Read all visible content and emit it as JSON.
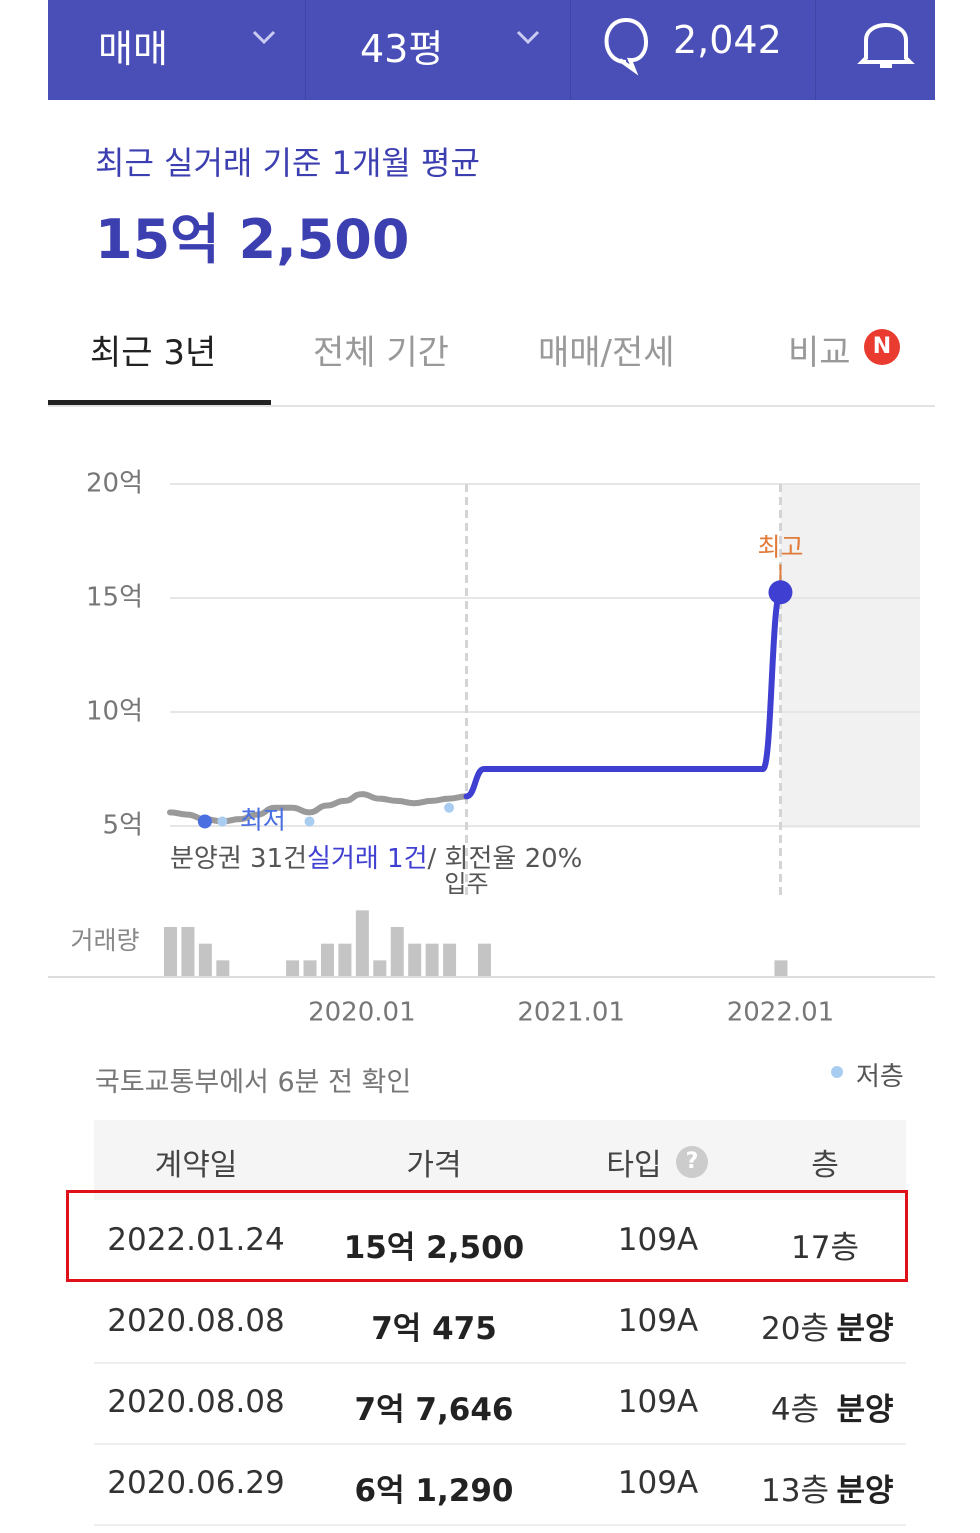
{
  "topbar": {
    "deal": "매매",
    "size": "43평",
    "comments": "2,042"
  },
  "header": {
    "subtitle": "최근 실거래 기준 1개월 평균",
    "price": "15억 2,500"
  },
  "tabs": [
    "최근 3년",
    "전체 기간",
    "매매/전세",
    "비교"
  ],
  "badge": "N",
  "chart_data": {
    "type": "line",
    "xlim": [
      "2019.02",
      "2022.09"
    ],
    "xticks": [
      "2020.01",
      "2021.01",
      "2022.01"
    ],
    "ylim": [
      5,
      20
    ],
    "yticks": [
      {
        "value": 5,
        "label": "5억"
      },
      {
        "value": 10,
        "label": "10억"
      },
      {
        "value": 15,
        "label": "15억"
      },
      {
        "value": 20,
        "label": "20억"
      }
    ],
    "grid": true,
    "series": [
      {
        "color": "#9a9a9a",
        "x": [
          "2019.02",
          "2019.03",
          "2019.04",
          "2019.05",
          "2019.06",
          "2019.07",
          "2019.08",
          "2019.09",
          "2019.10",
          "2019.11",
          "2019.12",
          "2020.01",
          "2020.02",
          "2020.03",
          "2020.04",
          "2020.05",
          "2020.06",
          "2020.07"
        ],
        "values": [
          5.6,
          5.5,
          5.3,
          5.2,
          5.3,
          5.5,
          5.8,
          5.8,
          5.6,
          5.9,
          6.1,
          6.4,
          6.2,
          6.1,
          6.0,
          6.1,
          6.2,
          6.3
        ]
      },
      {
        "color": "#3f3fd2",
        "x": [
          "2020.07",
          "2020.08",
          "2021.12",
          "2022.01"
        ],
        "values": [
          6.3,
          7.5,
          7.5,
          15.25
        ]
      },
      {
        "name": "저층",
        "type": "scatter",
        "color": "#a9cdf0",
        "x": [
          "2019.05",
          "2019.10",
          "2020.06"
        ],
        "values": [
          5.2,
          5.2,
          5.8
        ]
      }
    ],
    "annotations": [
      {
        "x": "2019.04",
        "y": 5.2,
        "text": "최저",
        "color": "#4a6fe0"
      },
      {
        "x": "2022.01",
        "y": 15.25,
        "text": "최고",
        "color": "#e07b3a"
      }
    ],
    "events": [
      {
        "x": "2020.07",
        "label": "입주"
      },
      {
        "x": "2022.01"
      }
    ],
    "summary": [
      {
        "text": "분양권 31건",
        "color": "#555555"
      },
      {
        "text": "실거래 1건",
        "color": "#3f3fd2"
      },
      {
        "text": "/ 회전율 20%",
        "color": "#555555"
      }
    ],
    "volume": {
      "label": "거래량",
      "color": "#c4c4c4",
      "ylim": [
        0,
        4.5
      ],
      "x": [
        "2019.02",
        "2019.03",
        "2019.04",
        "2019.05",
        "2019.09",
        "2019.10",
        "2019.11",
        "2019.12",
        "2020.01",
        "2020.02",
        "2020.03",
        "2020.04",
        "2020.05",
        "2020.06",
        "2020.08",
        "2022.01"
      ],
      "values": [
        3,
        3,
        2,
        1,
        1,
        1,
        2,
        2,
        4,
        1,
        3,
        2,
        2,
        2,
        2,
        1
      ]
    }
  },
  "source": "국토교통부에서 6분 전 확인",
  "table": {
    "headers": [
      "계약일",
      "가격",
      "타입",
      "층"
    ],
    "rows": [
      {
        "date": "2022.01.24",
        "price": "15억 2,500",
        "type": "109A",
        "floor": "17층"
      },
      {
        "date": "2020.08.08",
        "price": "7억 475",
        "type": "109A",
        "floor": "20층",
        "tag": "분양"
      },
      {
        "date": "2020.08.08",
        "price": "7억 7,646",
        "type": "109A",
        "floor": "4층",
        "tag": "분양"
      },
      {
        "date": "2020.06.29",
        "price": "6억 1,290",
        "type": "109A",
        "floor": "13층",
        "tag": "분양"
      }
    ]
  }
}
